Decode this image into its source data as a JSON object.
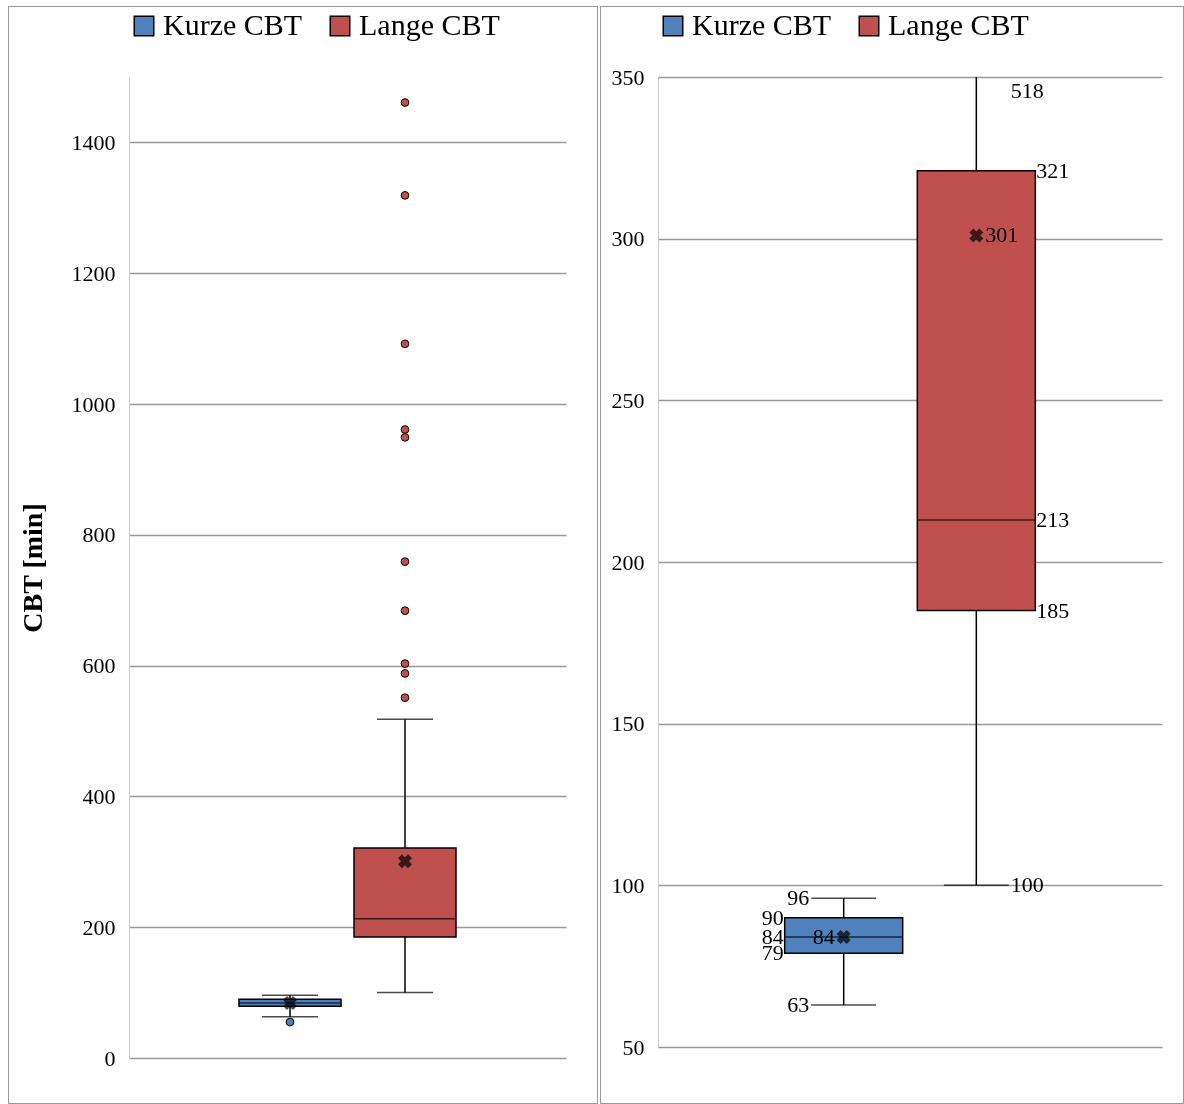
{
  "chart_data": [
    {
      "type": "box",
      "ylabel": "CBT [min]",
      "legend": "top",
      "grid": "y",
      "categories": [
        null
      ],
      "ylim": [
        0,
        1500
      ],
      "yticks": [
        0,
        200,
        400,
        600,
        800,
        1000,
        1200,
        1400
      ],
      "series": [
        {
          "name": "Kurze CBT",
          "color": "#4f81bd",
          "boxes": [
            {
              "low": 63,
              "q1": 79,
              "median": 84,
              "q3": 90,
              "high": 96,
              "mean": 84,
              "outliers": [
                55
              ]
            }
          ]
        },
        {
          "name": "Lange CBT",
          "color": "#c0504d",
          "boxes": [
            {
              "low": 100,
              "q1": 185,
              "median": 213,
              "q3": 321,
              "high": 518,
              "mean": 301,
              "outliers": [
                551,
                588,
                603,
                684,
                759,
                949,
                961,
                1092,
                1319,
                1461
              ]
            }
          ]
        }
      ]
    },
    {
      "type": "box",
      "legend": "top",
      "grid": "y",
      "categories": [
        null
      ],
      "ylim": [
        50,
        350
      ],
      "yticks": [
        50,
        100,
        150,
        200,
        250,
        300,
        350
      ],
      "series": [
        {
          "name": "Kurze CBT",
          "color": "#4f81bd",
          "boxes": [
            {
              "low": 63,
              "q1": 79,
              "median": 84,
              "q3": 90,
              "high": 96,
              "mean": 84
            }
          ]
        },
        {
          "name": "Lange CBT",
          "color": "#c0504d",
          "boxes": [
            {
              "low": 100,
              "q1": 185,
              "median": 213,
              "q3": 321,
              "high": 518,
              "mean": 301
            }
          ]
        }
      ],
      "annotations": [
        "96",
        "90",
        "84",
        "84",
        "79",
        "63",
        "518",
        "321",
        "301",
        "213",
        "185",
        "100"
      ]
    }
  ]
}
